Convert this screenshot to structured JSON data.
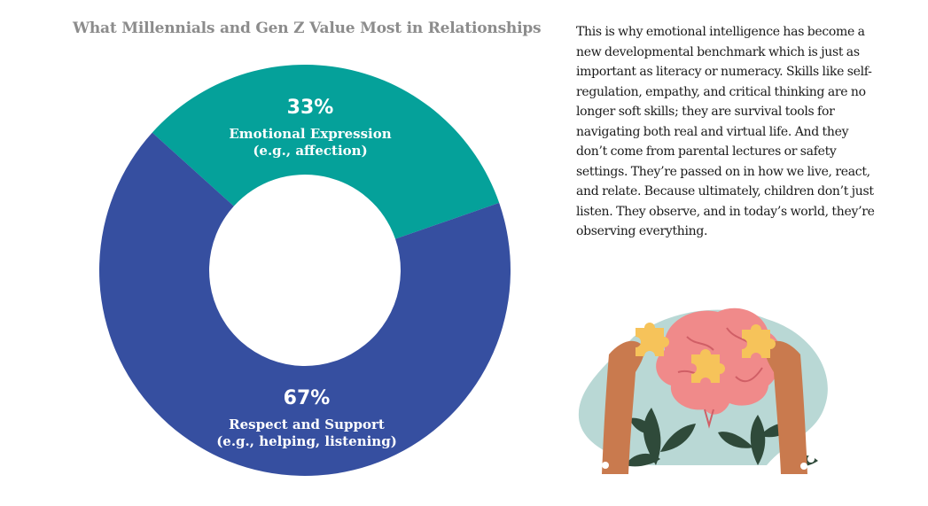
{
  "chart_data": {
    "type": "pie",
    "title": "What Millennials and Gen Z Value Most in Relationships",
    "slices": [
      {
        "value": 33,
        "label": "33%",
        "name": "Emotional Expression",
        "detail": "(e.g., affection)",
        "color": "#05a19a"
      },
      {
        "value": 67,
        "label": "67%",
        "name": "Respect and Support",
        "detail": "(e.g., helping, listening)",
        "color": "#364fa0"
      }
    ]
  },
  "body": {
    "paragraph": "This is why emotional intelligence has become a new developmental benchmark which is just as important as literacy or numeracy. Skills like self-regulation, empathy, and critical thinking are no longer soft skills; they are survival tools for navigating both real and virtual life. And they don’t come from parental lectures or safety settings. They’re passed on in how we live, react, and relate. Because ultimately, children don’t just listen. They observe, and in today’s world, they’re observing everything."
  },
  "illustration": {
    "icon": "brain-puzzle-hands-icon",
    "colors": {
      "blob": "#b9d8d5",
      "brain": "#f08a8a",
      "puzzle": "#f6c35a",
      "arms": "#c97a4e",
      "leaves": "#2f4a3a"
    }
  }
}
